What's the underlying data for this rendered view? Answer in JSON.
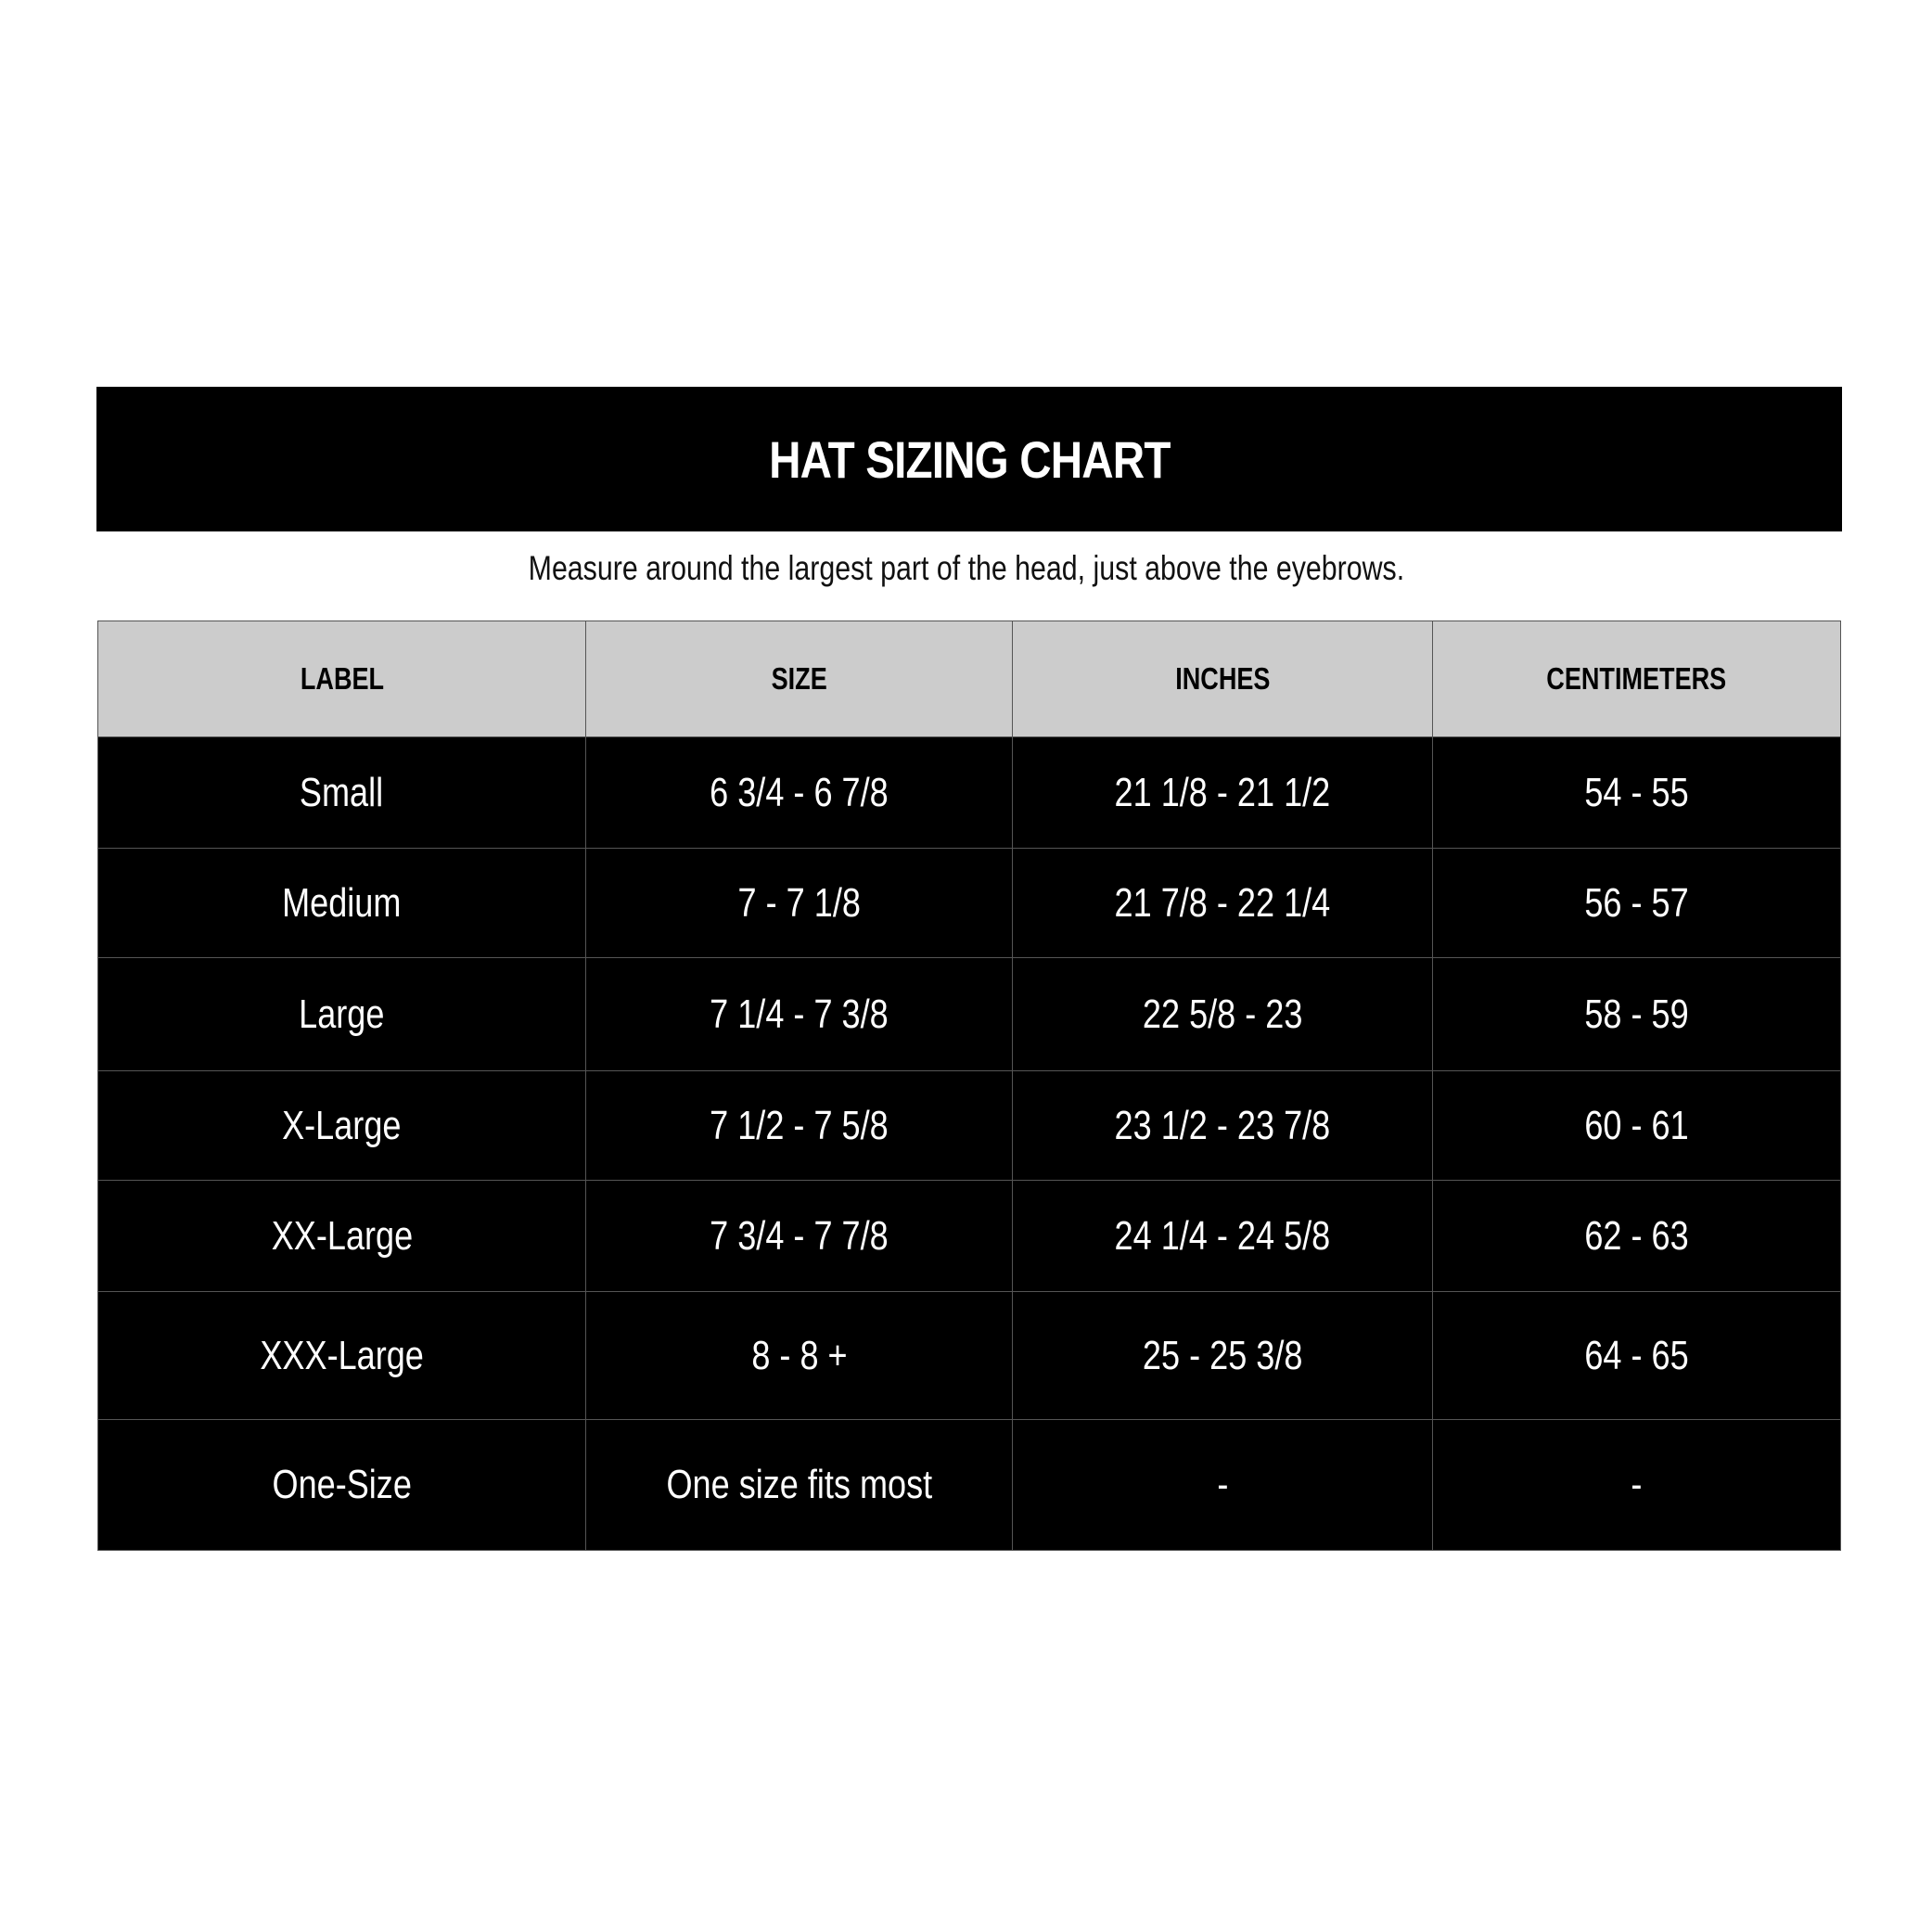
{
  "title": "HAT SIZING CHART",
  "subtitle": "Measure around the largest part of the head, just above the eyebrows.",
  "columns": [
    "LABEL",
    "SIZE",
    "INCHES",
    "CENTIMETERS"
  ],
  "rows": [
    [
      "Small",
      "6 3/4 - 6 7/8",
      "21 1/8 - 21 1/2",
      "54 - 55"
    ],
    [
      "Medium",
      "7 - 7 1/8",
      "21 7/8 - 22 1/4",
      "56 - 57"
    ],
    [
      "Large",
      "7 1/4 - 7 3/8",
      "22 5/8 - 23",
      "58 - 59"
    ],
    [
      "X-Large",
      "7 1/2 - 7 5/8",
      "23 1/2 - 23 7/8",
      "60 - 61"
    ],
    [
      "XX-Large",
      "7 3/4 - 7 7/8",
      "24 1/4 - 24 5/8",
      "62 - 63"
    ],
    [
      "XXX-Large",
      "8 - 8 +",
      "25 - 25 3/8",
      "64 - 65"
    ],
    [
      "One-Size",
      "One size fits most",
      "-",
      "-"
    ]
  ],
  "colors": {
    "header_bg": "#cccccc",
    "row_bg": "#000000",
    "title_bg": "#000000"
  }
}
